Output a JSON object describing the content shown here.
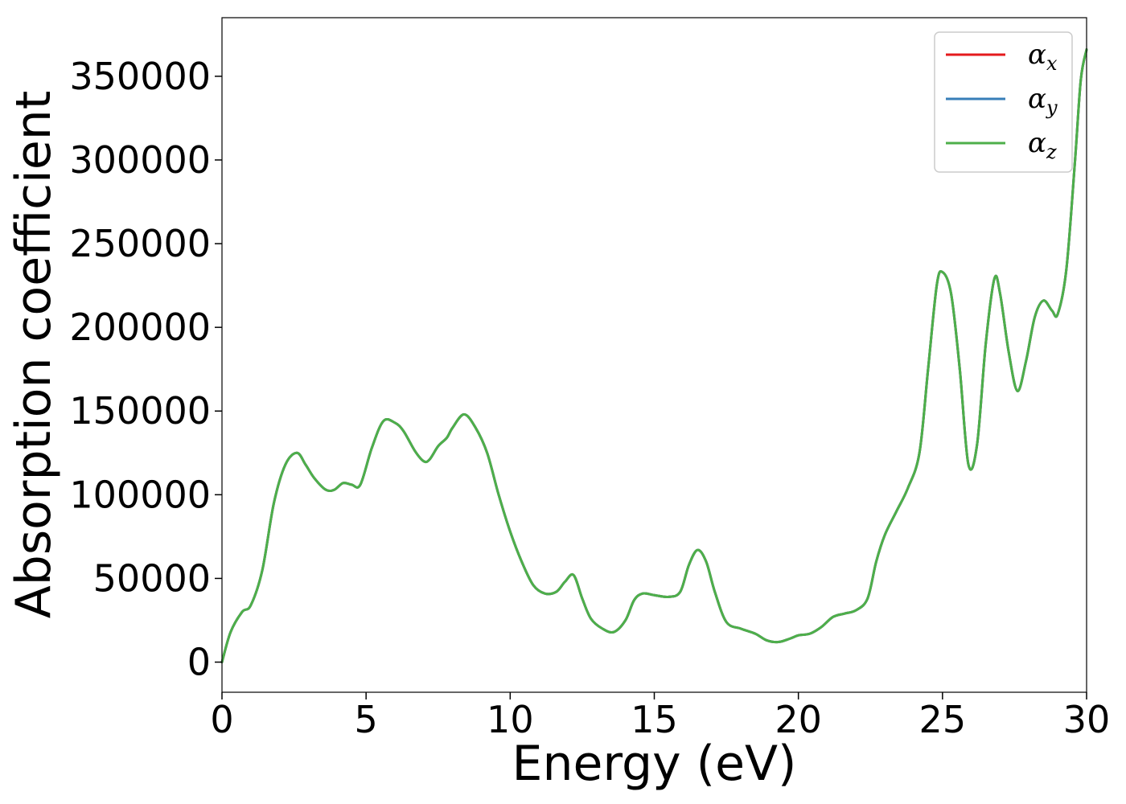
{
  "chart_data": {
    "type": "line",
    "title": "",
    "xlabel": "Energy (eV)",
    "ylabel": "Absorption coefficient",
    "xlim": [
      0,
      30
    ],
    "ylim": [
      -18000,
      385000
    ],
    "xticks": [
      0,
      5,
      10,
      15,
      20,
      25,
      30
    ],
    "yticks": [
      0,
      50000,
      100000,
      150000,
      200000,
      250000,
      300000,
      350000
    ],
    "grid": false,
    "legend": {
      "placement": "top-right",
      "entries": [
        {
          "symbol": "α",
          "subscript": "x",
          "color": "#e41a1c"
        },
        {
          "symbol": "α",
          "subscript": "y",
          "color": "#377eb8"
        },
        {
          "symbol": "α",
          "subscript": "z",
          "color": "#4daf4a"
        }
      ]
    },
    "x": [
      0,
      0.3,
      0.7,
      1.0,
      1.4,
      1.8,
      2.2,
      2.6,
      2.9,
      3.2,
      3.6,
      3.9,
      4.2,
      4.5,
      4.8,
      5.2,
      5.6,
      6.0,
      6.3,
      6.7,
      7.0,
      7.2,
      7.5,
      7.8,
      8.0,
      8.4,
      8.8,
      9.2,
      9.6,
      10.0,
      10.4,
      10.8,
      11.2,
      11.6,
      11.9,
      12.2,
      12.5,
      12.8,
      13.2,
      13.6,
      14.0,
      14.3,
      14.6,
      15.0,
      15.5,
      15.9,
      16.2,
      16.5,
      16.8,
      17.1,
      17.5,
      18.0,
      18.5,
      18.9,
      19.3,
      19.7,
      20.0,
      20.4,
      20.8,
      21.2,
      21.6,
      22.0,
      22.4,
      22.7,
      23.0,
      23.4,
      23.8,
      24.2,
      24.5,
      24.8,
      25.0,
      25.3,
      25.6,
      25.9,
      26.2,
      26.5,
      26.8,
      27.0,
      27.3,
      27.6,
      27.9,
      28.2,
      28.5,
      28.8,
      29.0,
      29.3,
      29.6,
      29.8,
      30.0
    ],
    "series": [
      {
        "name": "α_x",
        "color": "#e41a1c",
        "values": [
          0,
          18000,
          30000,
          34000,
          55000,
          95000,
          118000,
          125000,
          118000,
          110000,
          103000,
          103000,
          107000,
          106000,
          106000,
          128000,
          144000,
          143000,
          138000,
          126000,
          120000,
          121000,
          129000,
          134000,
          140000,
          148000,
          140000,
          125000,
          100000,
          78000,
          60000,
          46000,
          41000,
          42000,
          48000,
          52000,
          38000,
          26000,
          20000,
          18000,
          25000,
          37000,
          41000,
          40000,
          39000,
          42000,
          58000,
          67000,
          60000,
          42000,
          24000,
          20000,
          17000,
          13000,
          12000,
          14000,
          16000,
          17000,
          21000,
          27000,
          29000,
          31000,
          38000,
          60000,
          76000,
          90000,
          104000,
          125000,
          175000,
          225000,
          233000,
          220000,
          175000,
          118000,
          130000,
          190000,
          229000,
          220000,
          185000,
          162000,
          180000,
          206000,
          216000,
          210000,
          208000,
          235000,
          300000,
          348000,
          366000
        ]
      },
      {
        "name": "α_y",
        "color": "#377eb8",
        "values": [
          0,
          18000,
          30000,
          34000,
          55000,
          95000,
          118000,
          125000,
          118000,
          110000,
          103000,
          103000,
          107000,
          106000,
          106000,
          128000,
          144000,
          143000,
          138000,
          126000,
          120000,
          121000,
          129000,
          134000,
          140000,
          148000,
          140000,
          125000,
          100000,
          78000,
          60000,
          46000,
          41000,
          42000,
          48000,
          52000,
          38000,
          26000,
          20000,
          18000,
          25000,
          37000,
          41000,
          40000,
          39000,
          42000,
          58000,
          67000,
          60000,
          42000,
          24000,
          20000,
          17000,
          13000,
          12000,
          14000,
          16000,
          17000,
          21000,
          27000,
          29000,
          31000,
          38000,
          60000,
          76000,
          90000,
          104000,
          125000,
          175000,
          225000,
          233000,
          220000,
          175000,
          118000,
          130000,
          190000,
          229000,
          220000,
          185000,
          162000,
          180000,
          206000,
          216000,
          210000,
          208000,
          235000,
          300000,
          348000,
          366000
        ]
      },
      {
        "name": "α_z",
        "color": "#4daf4a",
        "values": [
          0,
          18000,
          30000,
          34000,
          55000,
          95000,
          118000,
          125000,
          118000,
          110000,
          103000,
          103000,
          107000,
          106000,
          106000,
          128000,
          144000,
          143000,
          138000,
          126000,
          120000,
          121000,
          129000,
          134000,
          140000,
          148000,
          140000,
          125000,
          100000,
          78000,
          60000,
          46000,
          41000,
          42000,
          48000,
          52000,
          38000,
          26000,
          20000,
          18000,
          25000,
          37000,
          41000,
          40000,
          39000,
          42000,
          58000,
          67000,
          60000,
          42000,
          24000,
          20000,
          17000,
          13000,
          12000,
          14000,
          16000,
          17000,
          21000,
          27000,
          29000,
          31000,
          38000,
          60000,
          76000,
          90000,
          104000,
          125000,
          175000,
          225000,
          233000,
          220000,
          175000,
          118000,
          130000,
          190000,
          229000,
          220000,
          185000,
          162000,
          180000,
          206000,
          216000,
          210000,
          208000,
          235000,
          300000,
          348000,
          366000
        ]
      }
    ]
  }
}
